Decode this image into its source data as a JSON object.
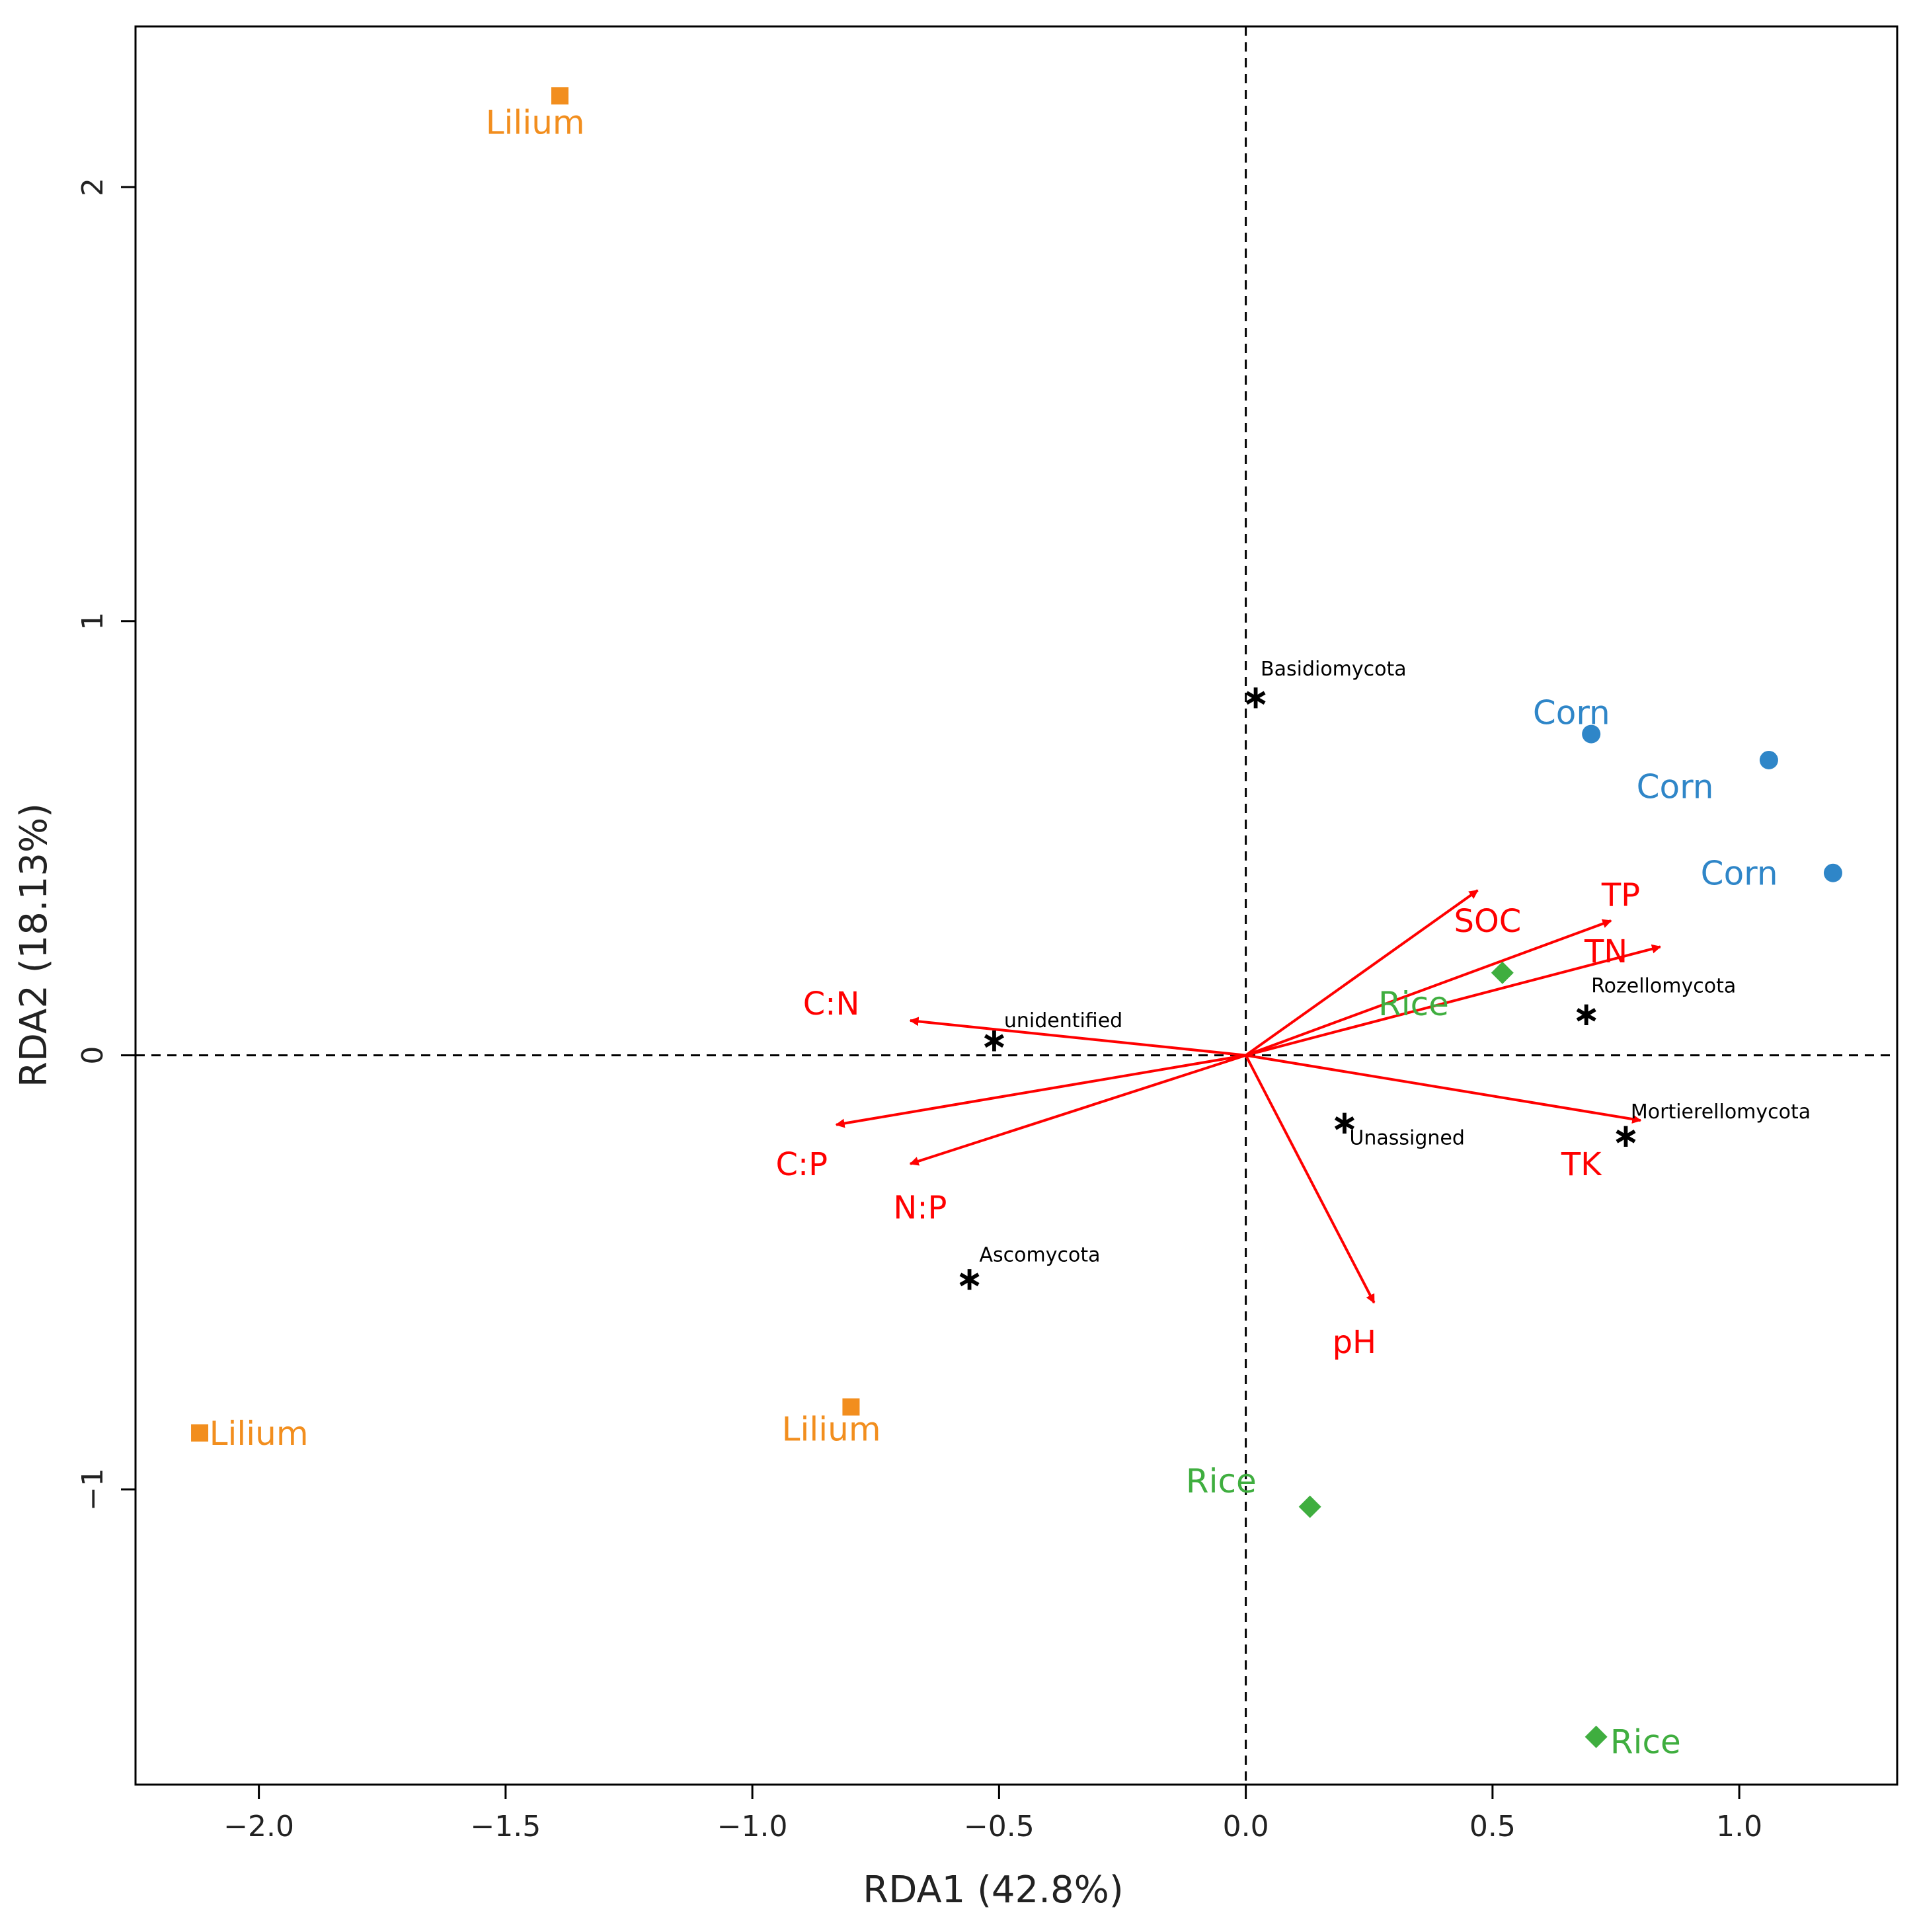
{
  "chart_data": {
    "type": "scatter",
    "xlabel": "RDA1 (42.8%)",
    "ylabel": "RDA2 (18.13%)",
    "xlim": [
      -2.25,
      1.32
    ],
    "ylim": [
      -1.68,
      2.37
    ],
    "xticks": [
      -2.0,
      -1.5,
      -1.0,
      -0.5,
      0.0,
      0.5,
      1.0
    ],
    "xtick_labels": [
      "−2.0",
      "−1.5",
      "−1.0",
      "−0.5",
      "0.0",
      "0.5",
      "1.0"
    ],
    "yticks": [
      -1,
      0,
      1,
      2
    ],
    "ytick_labels": [
      "−1",
      "0",
      "1",
      "2"
    ],
    "colors": {
      "Lilium": "#f28e1e",
      "Corn": "#2f86c8",
      "Rice": "#3fae3f",
      "env": "#ff0000",
      "species": "#000000"
    },
    "samples": [
      {
        "group": "Lilium",
        "label": "Lilium",
        "x": -1.39,
        "y": 2.21,
        "marker": "square",
        "label_x": -1.44,
        "label_y": 2.15
      },
      {
        "group": "Lilium",
        "label": "Lilium",
        "x": -2.12,
        "y": -0.87,
        "marker": "square",
        "label_x": -2.0,
        "label_y": -0.87
      },
      {
        "group": "Lilium",
        "label": "Lilium",
        "x": -0.8,
        "y": -0.81,
        "marker": "square",
        "label_x": -0.84,
        "label_y": -0.86
      },
      {
        "group": "Corn",
        "label": "Corn",
        "x": 0.7,
        "y": 0.74,
        "marker": "circle",
        "label_x": 0.66,
        "label_y": 0.79
      },
      {
        "group": "Corn",
        "label": "Corn",
        "x": 1.06,
        "y": 0.68,
        "marker": "circle",
        "label_x": 0.87,
        "label_y": 0.62
      },
      {
        "group": "Corn",
        "label": "Corn",
        "x": 1.19,
        "y": 0.42,
        "marker": "circle",
        "label_x": 1.0,
        "label_y": 0.42
      },
      {
        "group": "Rice",
        "label": "Rice",
        "x": 0.52,
        "y": 0.19,
        "marker": "diamond",
        "label_x": 0.34,
        "label_y": 0.12
      },
      {
        "group": "Rice",
        "label": "Rice",
        "x": 0.13,
        "y": -1.04,
        "marker": "diamond",
        "label_x": -0.05,
        "label_y": -0.98
      },
      {
        "group": "Rice",
        "label": "Rice",
        "x": 0.71,
        "y": -1.57,
        "marker": "diamond",
        "label_x": 0.81,
        "label_y": -1.58
      }
    ],
    "species": [
      {
        "label": "Basidiomycota",
        "x": 0.02,
        "y": 0.83,
        "label_x": 0.03,
        "label_y": 0.89
      },
      {
        "label": "Rozellomycota",
        "x": 0.69,
        "y": 0.1,
        "label_x": 0.7,
        "label_y": 0.16
      },
      {
        "label": "unidentified",
        "x": -0.51,
        "y": 0.04,
        "label_x": -0.49,
        "label_y": 0.08
      },
      {
        "label": "Unassigned",
        "x": 0.2,
        "y": -0.15,
        "label_x": 0.21,
        "label_y": -0.19
      },
      {
        "label": "Mortierellomycota",
        "x": 0.77,
        "y": -0.18,
        "label_x": 0.78,
        "label_y": -0.13
      },
      {
        "label": "Ascomycota",
        "x": -0.56,
        "y": -0.51,
        "label_x": -0.54,
        "label_y": -0.46
      }
    ],
    "env_vectors": [
      {
        "label": "SOC",
        "x": 0.47,
        "y": 0.38,
        "label_x": 0.49,
        "label_y": 0.31
      },
      {
        "label": "TP",
        "x": 0.74,
        "y": 0.31,
        "label_x": 0.76,
        "label_y": 0.37
      },
      {
        "label": "TN",
        "x": 0.84,
        "y": 0.25,
        "label_x": 0.73,
        "label_y": 0.24
      },
      {
        "label": "C:N",
        "x": -0.68,
        "y": 0.08,
        "label_x": -0.84,
        "label_y": 0.12
      },
      {
        "label": "C:P",
        "x": -0.83,
        "y": -0.16,
        "label_x": -0.9,
        "label_y": -0.25
      },
      {
        "label": "N:P",
        "x": -0.68,
        "y": -0.25,
        "label_x": -0.66,
        "label_y": -0.35
      },
      {
        "label": "TK",
        "x": 0.8,
        "y": -0.15,
        "label_x": 0.68,
        "label_y": -0.25
      },
      {
        "label": "pH",
        "x": 0.26,
        "y": -0.57,
        "label_x": 0.22,
        "label_y": -0.66
      }
    ]
  }
}
